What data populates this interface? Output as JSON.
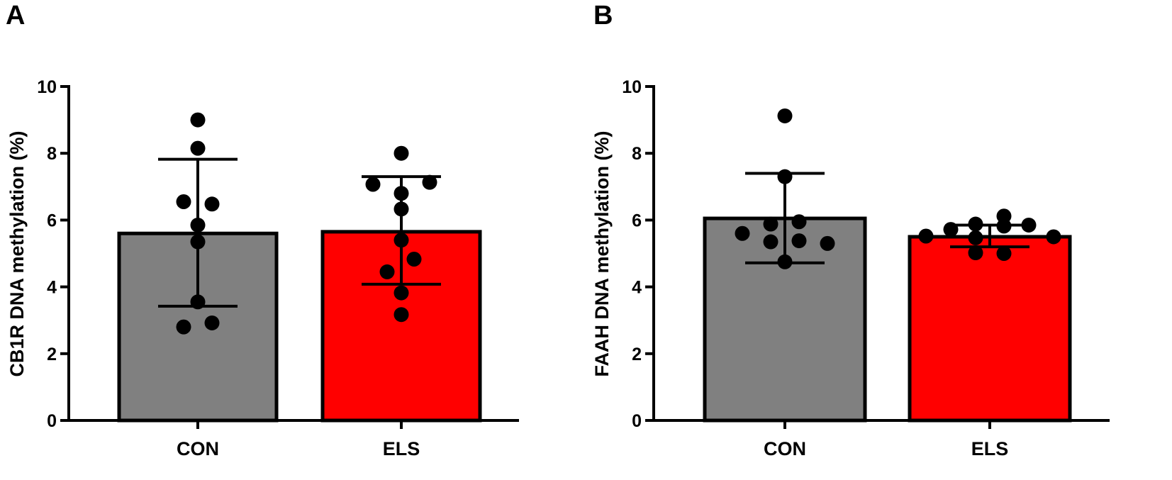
{
  "chart_data": [
    {
      "type": "bar",
      "panel_label": "A",
      "title": "",
      "xlabel": "",
      "ylabel": "CB1R DNA methylation (%)",
      "ylim": [
        0,
        10
      ],
      "yticks": [
        "0",
        "2",
        "4",
        "6",
        "8",
        "10"
      ],
      "categories": [
        "CON",
        "ELS"
      ],
      "bar_colors": [
        "#808080",
        "#ff0000"
      ],
      "values": [
        5.6,
        5.65
      ],
      "error_upper": [
        7.82,
        7.3
      ],
      "error_lower": [
        3.42,
        4.08
      ],
      "points": [
        [
          9.0,
          8.15,
          6.55,
          6.48,
          5.85,
          5.35,
          3.55,
          2.8,
          2.92
        ],
        [
          8.0,
          7.07,
          7.13,
          6.8,
          6.33,
          5.4,
          4.83,
          4.45,
          3.82,
          3.17
        ]
      ]
    },
    {
      "type": "bar",
      "panel_label": "B",
      "title": "",
      "xlabel": "",
      "ylabel": "FAAH DNA methylation (%)",
      "ylim": [
        0,
        10
      ],
      "yticks": [
        "0",
        "2",
        "4",
        "6",
        "8",
        "10"
      ],
      "categories": [
        "CON",
        "ELS"
      ],
      "bar_colors": [
        "#808080",
        "#ff0000"
      ],
      "values": [
        6.05,
        5.5
      ],
      "error_upper": [
        7.4,
        5.85
      ],
      "error_lower": [
        4.72,
        5.2
      ],
      "points": [
        [
          9.12,
          7.3,
          5.95,
          5.88,
          5.6,
          5.35,
          5.38,
          5.3,
          4.75
        ],
        [
          5.52,
          5.72,
          5.88,
          6.12,
          5.85,
          5.82,
          5.47,
          5.5,
          5.02,
          5.0
        ]
      ]
    }
  ]
}
